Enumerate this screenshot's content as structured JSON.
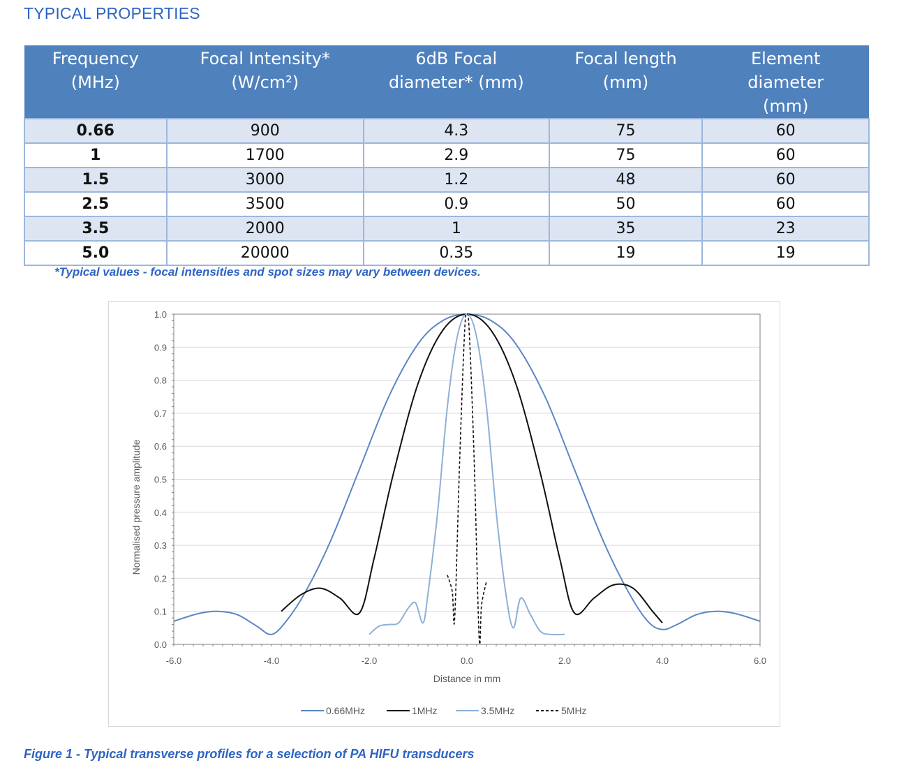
{
  "heading": "TYPICAL PROPERTIES",
  "table": {
    "headers": [
      "Frequency\n(MHz)",
      "Focal Intensity*\n(W/cm²)",
      "6dB Focal\ndiameter* (mm)",
      "Focal length\n(mm)",
      "Element\ndiameter\n(mm)"
    ],
    "rows": [
      [
        "0.66",
        "900",
        "4.3",
        "75",
        "60"
      ],
      [
        "1",
        "1700",
        "2.9",
        "75",
        "60"
      ],
      [
        "1.5",
        "3000",
        "1.2",
        "48",
        "60"
      ],
      [
        "2.5",
        "3500",
        "0.9",
        "50",
        "60"
      ],
      [
        "3.5",
        "2000",
        "1",
        "35",
        "23"
      ],
      [
        "5.0",
        "20000",
        "0.35",
        "19",
        "19"
      ]
    ]
  },
  "footnote": "*Typical values - focal intensities and spot sizes may vary between devices.",
  "caption": "Figure 1 - Typical transverse profiles for a selection of PA HIFU transducers",
  "chart_data": {
    "type": "line",
    "xlabel": "Distance in mm",
    "ylabel": "Normalised pressure amplitude",
    "xlim": [
      -6,
      6
    ],
    "ylim": [
      0,
      1
    ],
    "x_ticks": [
      "-6.0",
      "-4.0",
      "-2.0",
      "0.0",
      "2.0",
      "4.0",
      "6.0"
    ],
    "y_ticks": [
      "0.0",
      "0.1",
      "0.2",
      "0.3",
      "0.4",
      "0.5",
      "0.6",
      "0.7",
      "0.8",
      "0.9",
      "1.0"
    ],
    "grid": "horizontal",
    "legend": "bottom",
    "series": [
      {
        "name": "0.66MHz",
        "color": "#5b86c3",
        "dash": "solid",
        "x": [
          -6.0,
          -5.5,
          -5.1,
          -4.7,
          -4.3,
          -4.0,
          -3.7,
          -3.3,
          -2.8,
          -2.2,
          -1.6,
          -1.0,
          -0.5,
          0.0,
          0.5,
          1.0,
          1.6,
          2.2,
          2.8,
          3.3,
          3.7,
          4.0,
          4.3,
          4.7,
          5.1,
          5.5,
          6.0
        ],
        "y": [
          0.07,
          0.093,
          0.1,
          0.09,
          0.055,
          0.03,
          0.07,
          0.16,
          0.31,
          0.53,
          0.75,
          0.91,
          0.98,
          1.0,
          0.98,
          0.91,
          0.75,
          0.53,
          0.31,
          0.16,
          0.07,
          0.045,
          0.06,
          0.09,
          0.1,
          0.093,
          0.07
        ]
      },
      {
        "name": "1MHz",
        "color": "#111111",
        "dash": "solid",
        "x": [
          -3.8,
          -3.4,
          -3.0,
          -2.6,
          -2.2,
          -1.9,
          -1.5,
          -1.0,
          -0.5,
          0.0,
          0.5,
          1.0,
          1.5,
          1.9,
          2.2,
          2.6,
          3.0,
          3.4,
          3.8,
          4.0
        ],
        "y": [
          0.1,
          0.15,
          0.17,
          0.14,
          0.095,
          0.26,
          0.52,
          0.79,
          0.95,
          1.0,
          0.95,
          0.79,
          0.52,
          0.26,
          0.095,
          0.14,
          0.18,
          0.17,
          0.1,
          0.065
        ]
      },
      {
        "name": "3.5MHz",
        "color": "#8eafd8",
        "dash": "solid",
        "x": [
          -2.0,
          -1.8,
          -1.6,
          -1.4,
          -1.2,
          -1.05,
          -0.9,
          -0.8,
          -0.6,
          -0.4,
          -0.2,
          0.0,
          0.2,
          0.4,
          0.6,
          0.8,
          0.95,
          1.1,
          1.3,
          1.5,
          1.7,
          2.0
        ],
        "y": [
          0.03,
          0.055,
          0.06,
          0.065,
          0.11,
          0.125,
          0.065,
          0.15,
          0.4,
          0.72,
          0.93,
          1.0,
          0.93,
          0.72,
          0.4,
          0.15,
          0.05,
          0.14,
          0.09,
          0.04,
          0.03,
          0.03
        ]
      },
      {
        "name": "5MHz",
        "color": "#111111",
        "dash": "dashed",
        "x": [
          -0.4,
          -0.3,
          -0.25,
          -0.15,
          -0.05,
          0.0,
          0.05,
          0.15,
          0.25,
          0.3,
          0.4
        ],
        "y": [
          0.21,
          0.16,
          0.08,
          0.55,
          0.94,
          1.0,
          0.94,
          0.55,
          0.02,
          0.12,
          0.19
        ]
      }
    ]
  }
}
